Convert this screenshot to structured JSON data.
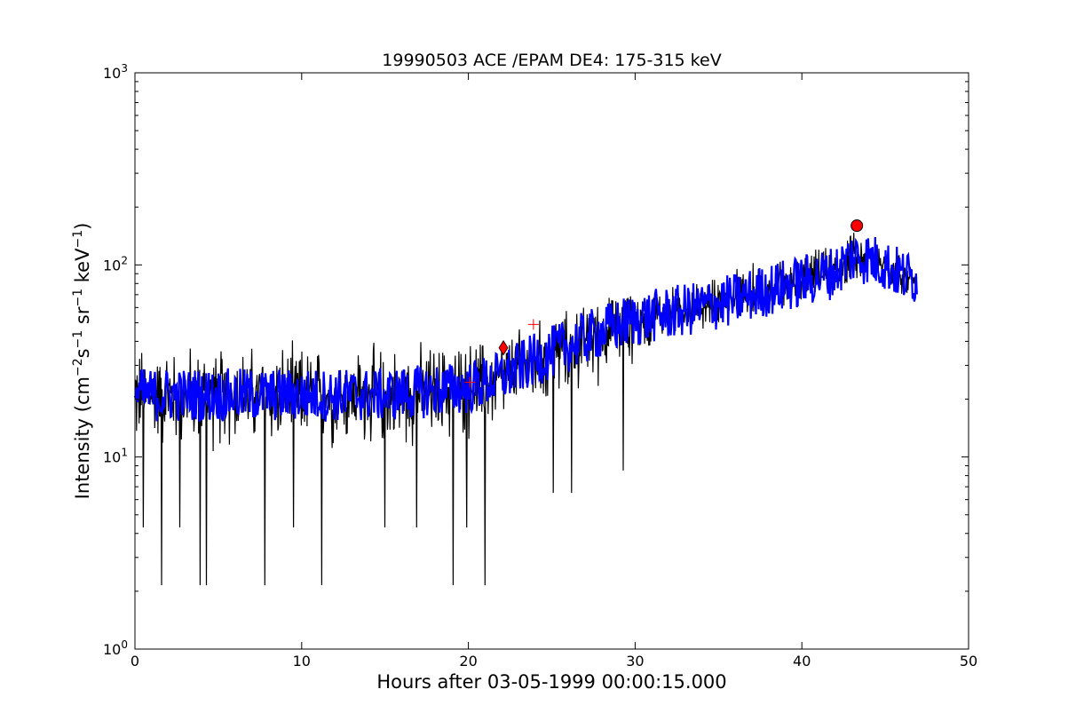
{
  "chart_data": {
    "type": "line",
    "title": "19990503 ACE /EPAM DE4: 175-315 keV",
    "xlabel": "Hours after 03-05-1999 00:00:15.000",
    "ylabel_parts": [
      "Intensity (cm",
      "−2",
      "s",
      "−1",
      " sr",
      "−1",
      " keV",
      "−1",
      ")"
    ],
    "x_scale": "linear",
    "y_scale": "log",
    "xlim": [
      0,
      50
    ],
    "ylim": [
      1,
      1000
    ],
    "grid": false,
    "x_ticks": [
      0,
      10,
      20,
      30,
      40,
      50
    ],
    "x_tick_labels": [
      "0",
      "10",
      "20",
      "30",
      "40",
      "50"
    ],
    "y_ticks": [
      1,
      10,
      100,
      1000
    ],
    "y_tick_labels": [
      [
        "10",
        "0"
      ],
      [
        "10",
        "1"
      ],
      [
        "10",
        "2"
      ],
      [
        "10",
        "3"
      ]
    ],
    "colors": {
      "raw": "#000000",
      "smoothed": "#0000ff",
      "markers": "#ff0000"
    },
    "series": [
      {
        "role": "raw",
        "style": "black line",
        "envelope_x": [
          0,
          5,
          10,
          15,
          20,
          22,
          24,
          26,
          28,
          30,
          32,
          34,
          36,
          38,
          40,
          42,
          43,
          44,
          45,
          46,
          46.9
        ],
        "envelope_median": [
          21,
          21,
          21,
          21,
          23,
          26,
          32,
          38,
          45,
          52,
          56,
          60,
          66,
          74,
          82,
          92,
          110,
          108,
          100,
          88,
          85
        ],
        "envelope_low": [
          10,
          10,
          10,
          10,
          11,
          12,
          15,
          19,
          22,
          28,
          40,
          44,
          50,
          55,
          62,
          68,
          75,
          75,
          70,
          62,
          65
        ],
        "envelope_high": [
          42,
          42,
          42,
          42,
          44,
          48,
          55,
          62,
          72,
          78,
          82,
          88,
          100,
          110,
          120,
          135,
          155,
          150,
          145,
          120,
          110
        ],
        "dips_x": [
          0.5,
          1.6,
          2.7,
          3.9,
          4.3,
          7.8,
          9.5,
          11.2,
          15.0,
          16.9,
          19.1,
          19.9,
          21.0,
          25.1,
          26.2,
          29.3
        ],
        "dips_y": [
          4.3,
          2.15,
          4.3,
          2.15,
          2.15,
          2.15,
          4.3,
          2.15,
          4.3,
          4.3,
          2.15,
          4.3,
          2.15,
          6.5,
          6.5,
          8.5
        ]
      },
      {
        "role": "smoothed",
        "style": "blue band",
        "x": [
          0,
          5,
          10,
          15,
          20,
          22,
          24,
          26,
          28,
          30,
          32,
          34,
          36,
          38,
          40,
          42,
          43,
          44,
          45,
          46,
          46.9
        ],
        "y": [
          21,
          21,
          21,
          21,
          23,
          26,
          32,
          38,
          45,
          52,
          56,
          60,
          66,
          74,
          82,
          92,
          110,
          108,
          100,
          88,
          85
        ]
      }
    ],
    "markers": [
      {
        "shape": "circle",
        "x": 43.3,
        "y": 160
      },
      {
        "shape": "diamond",
        "x": 22.1,
        "y": 37
      },
      {
        "shape": "plus",
        "x": 20.1,
        "y": 24.5
      },
      {
        "shape": "plus",
        "x": 23.9,
        "y": 49
      }
    ]
  }
}
